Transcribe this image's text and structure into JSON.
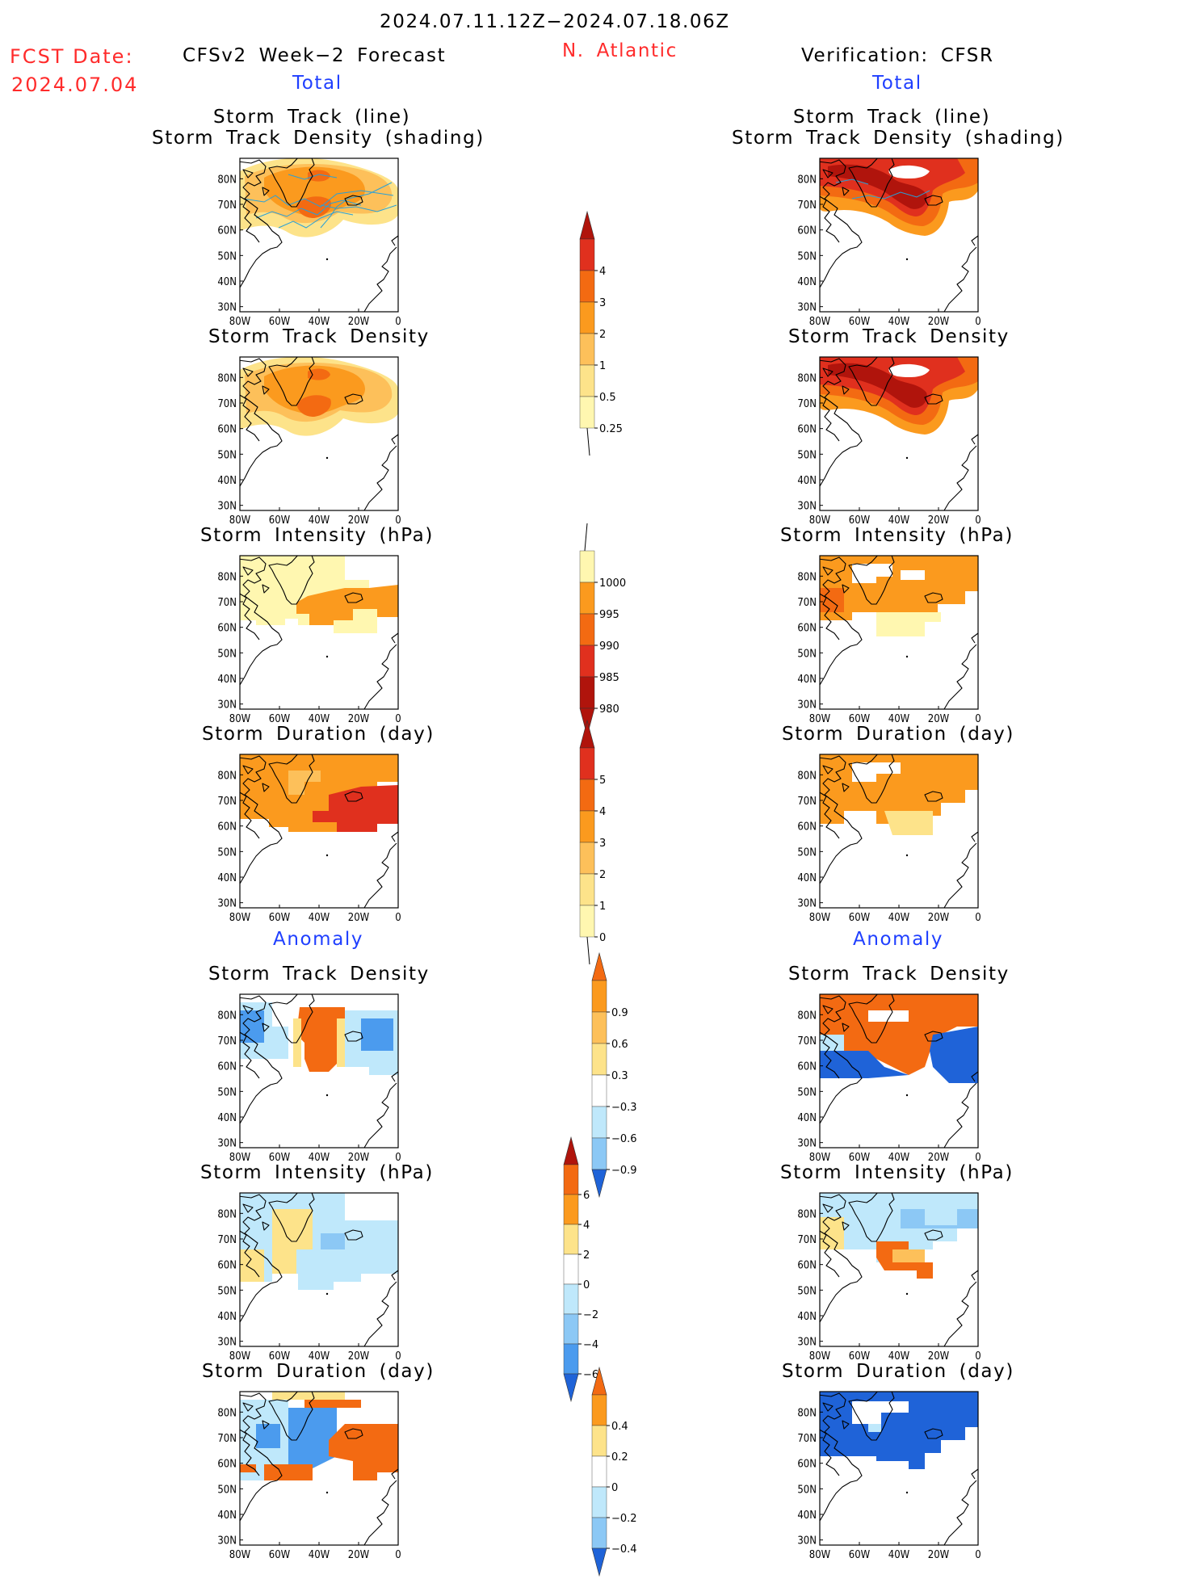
{
  "header": {
    "period": "2024.07.11.12Z−2024.07.18.06Z",
    "fcst_date_label": "FCST Date:",
    "fcst_date_value": "2024.07.04",
    "left_title": "CFSv2 Week−2 Forecast",
    "region": "N. Atlantic",
    "right_title": "Verification: CFSR"
  },
  "sections": {
    "total": "Total",
    "anomaly": "Anomaly"
  },
  "axes": {
    "lat_labels": [
      "80N",
      "70N",
      "60N",
      "50N",
      "40N",
      "30N"
    ],
    "lon_labels": [
      "80W",
      "60W",
      "40W",
      "20W",
      "0"
    ]
  },
  "panels": {
    "track_line_title": "Storm Track (line)",
    "track_shading_title": "Storm Track Density (shading)",
    "density_title": "Storm Track Density",
    "intensity_title": "Storm Intensity (hPa)",
    "duration_title": "Storm Duration (day)"
  },
  "colorbars": {
    "density_total": [
      "4",
      "3",
      "2",
      "1",
      "0.5",
      "0.25"
    ],
    "intensity_total": [
      "1000",
      "995",
      "990",
      "985",
      "980"
    ],
    "duration_total": [
      "5",
      "4",
      "3",
      "2",
      "1",
      "0"
    ],
    "density_anom": [
      "0.9",
      "0.6",
      "0.3",
      "−0.3",
      "−0.6",
      "−0.9"
    ],
    "intensity_anom": [
      "6",
      "4",
      "2",
      "0",
      "−2",
      "−4",
      "−6"
    ],
    "duration_anom": [
      "0.4",
      "0.2",
      "0",
      "−0.2",
      "−0.4"
    ]
  },
  "colors": {
    "title_red": "#ff2b2b",
    "label_blue": "#1f3fff",
    "pale_yellow": "#fff7b0",
    "light_yellow": "#fde38a",
    "light_orange": "#fdc05a",
    "orange": "#fb9a1e",
    "dark_orange": "#f36a12",
    "red": "#e0301e",
    "dark_red": "#b0140c",
    "light_blue": "#bfe8fb",
    "mid_blue": "#8cc8f5",
    "blue": "#4b9bee",
    "dark_blue": "#1f63d8"
  }
}
